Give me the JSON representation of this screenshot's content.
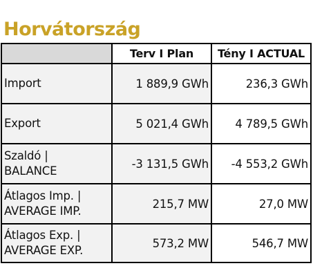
{
  "title": "Horvátország",
  "colors": {
    "title": "#c9a227",
    "header_corner": "#d9d9d9",
    "row_shade": "#f2f2f2",
    "border": "#000000"
  },
  "table": {
    "headers": [
      "",
      "Terv I Plan",
      "Tény I ACTUAL"
    ],
    "rows": [
      {
        "label_line1": "Import",
        "label_line2": "",
        "plan": "1 889,9 GWh",
        "actual": "236,3 GWh"
      },
      {
        "label_line1": "Export",
        "label_line2": "",
        "plan": "5 021,4 GWh",
        "actual": "4 789,5 GWh"
      },
      {
        "label_line1": "Szaldó |",
        "label_line2": "BALANCE",
        "plan": "-3 131,5 GWh",
        "actual": "-4 553,2 GWh"
      },
      {
        "label_line1": "Átlagos Imp. |",
        "label_line2": "AVERAGE IMP.",
        "plan": "215,7 MW",
        "actual": "27,0 MW"
      },
      {
        "label_line1": "Átlagos Exp. |",
        "label_line2": "AVERAGE EXP.",
        "plan": "573,2 MW",
        "actual": "546,7 MW"
      }
    ]
  }
}
